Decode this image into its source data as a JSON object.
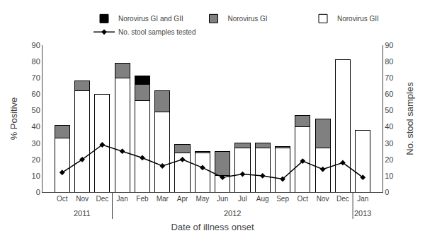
{
  "chart_data": {
    "type": "bar",
    "stacked": true,
    "categories": [
      "Oct",
      "Nov",
      "Dec",
      "Jan",
      "Feb",
      "Mar",
      "Apr",
      "May",
      "Jun",
      "Jul",
      "Aug",
      "Sep",
      "Oct",
      "Nov",
      "Dec",
      "Jan"
    ],
    "series": [
      {
        "name": "Norovirus GII",
        "color": "#ffffff",
        "values": [
          33,
          62,
          60,
          70,
          56,
          49,
          24,
          24,
          10,
          27,
          27,
          27,
          40,
          27,
          81,
          38
        ]
      },
      {
        "name": "Norovirus GI",
        "color": "#808080",
        "values": [
          8,
          6,
          0,
          9,
          10,
          13,
          5,
          1,
          15,
          3,
          3,
          1,
          7,
          18,
          0,
          0
        ]
      },
      {
        "name": "Norovirus GI and GII",
        "color": "#000000",
        "values": [
          0,
          0,
          0,
          0,
          5,
          0,
          0,
          0,
          0,
          0,
          0,
          0,
          0,
          0,
          0,
          0
        ]
      },
      {
        "name": "No. stool samples tested",
        "type": "line",
        "axis": "y2",
        "color": "#000000",
        "marker": "diamond",
        "values": [
          12,
          20,
          29,
          25,
          21,
          16,
          20,
          15,
          9,
          11,
          10,
          8,
          19,
          14,
          18,
          9
        ]
      }
    ],
    "xlabel": "Date of illness onset",
    "ylabel": "% Positive",
    "y2label": "No. stool samples",
    "ylim": [
      0,
      90
    ],
    "yticks": [
      0,
      10,
      20,
      30,
      40,
      50,
      60,
      70,
      80,
      90
    ],
    "y2lim": [
      0,
      90
    ],
    "y2ticks": [
      0,
      10,
      20,
      30,
      40,
      50,
      60,
      70,
      80,
      90
    ],
    "grid": false,
    "legend": "upper right",
    "annotations": [
      {
        "text": "2011",
        "start": 0,
        "end": 2
      },
      {
        "text": "2012",
        "start": 3,
        "end": 14
      },
      {
        "text": "2013",
        "start": 15,
        "end": 15
      }
    ]
  }
}
